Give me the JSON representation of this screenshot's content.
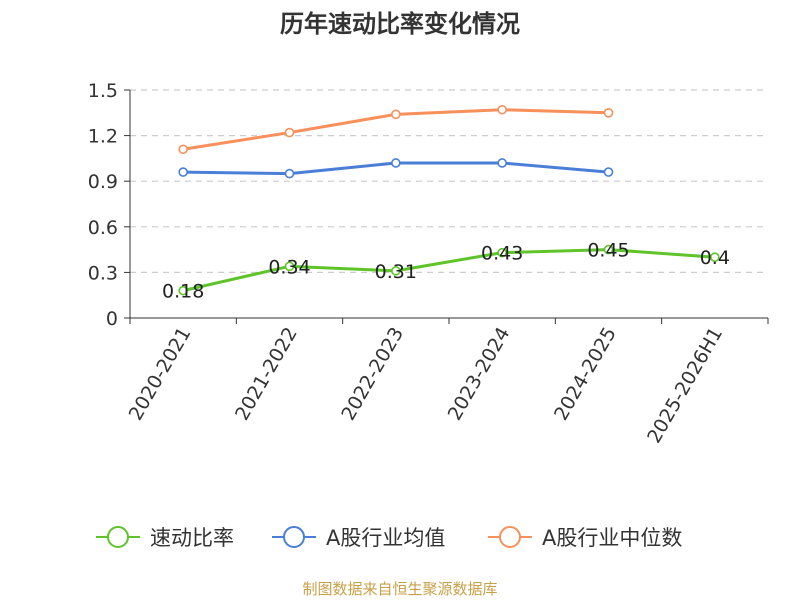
{
  "chart_data": {
    "type": "line",
    "title": "历年速动比率变化情况",
    "categories": [
      "2020-2021",
      "2021-2022",
      "2022-2023",
      "2023-2024",
      "2024-2025",
      "2025-2026H1"
    ],
    "ylim": [
      0,
      1.5
    ],
    "yticks": [
      "0",
      "0.3",
      "0.6",
      "0.9",
      "1.2",
      "1.5"
    ],
    "grid": true,
    "legend_position": "bottom",
    "series": [
      {
        "name": "速动比率",
        "color": "#5ec42a",
        "values": [
          0.18,
          0.34,
          0.31,
          0.43,
          0.45,
          0.4
        ],
        "labels": [
          "0.18",
          "0.34",
          "0.31",
          "0.43",
          "0.45",
          "0.4"
        ]
      },
      {
        "name": "A股行业均值",
        "color": "#4a7fd8",
        "values": [
          0.96,
          0.95,
          1.02,
          1.02,
          0.96,
          null
        ]
      },
      {
        "name": "A股行业中位数",
        "color": "#f7905a",
        "values": [
          1.11,
          1.22,
          1.34,
          1.37,
          1.35,
          null
        ]
      }
    ]
  },
  "source": "制图数据来自恒生聚源数据库"
}
